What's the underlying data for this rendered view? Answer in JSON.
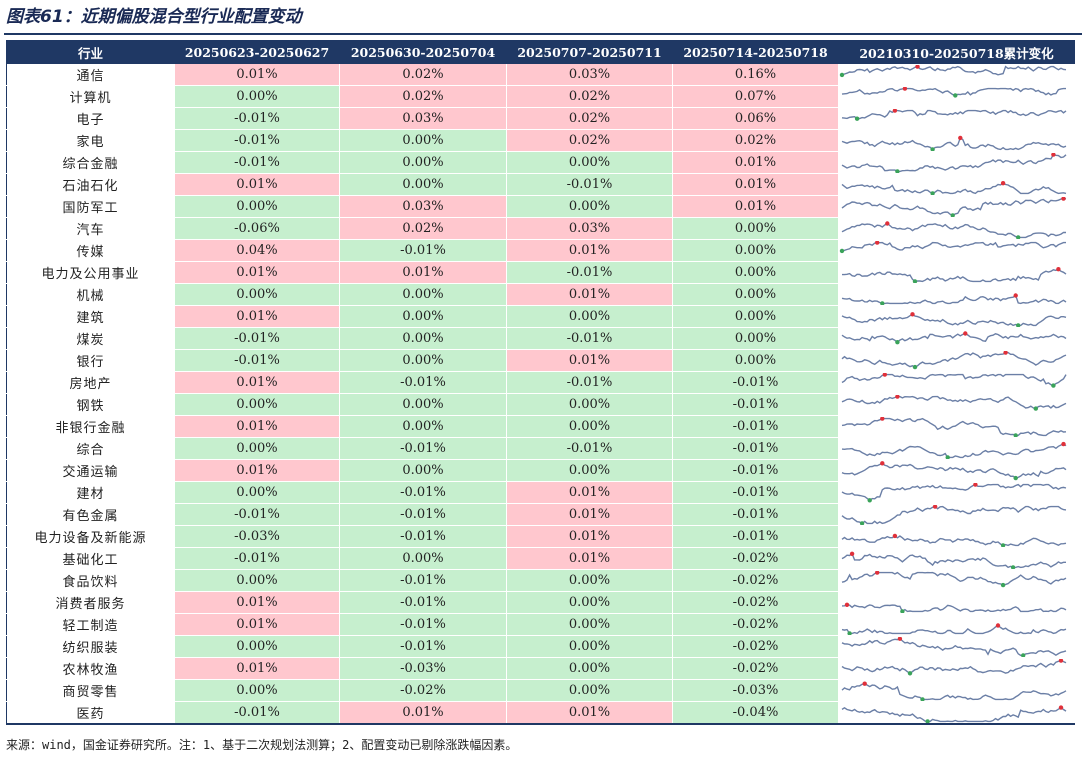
{
  "title": "图表61：近期偏股混合型行业配置变动",
  "headers": [
    "行业",
    "20250623-20250627",
    "20250630-20250704",
    "20250707-20250711",
    "20250714-20250718",
    "20210310-20250718累计变化"
  ],
  "rows": [
    {
      "name": "通信",
      "vals": [
        "0.01%",
        "0.02%",
        "0.03%",
        "0.16%"
      ]
    },
    {
      "name": "计算机",
      "vals": [
        "0.00%",
        "0.02%",
        "0.02%",
        "0.07%"
      ]
    },
    {
      "name": "电子",
      "vals": [
        "-0.01%",
        "0.03%",
        "0.02%",
        "0.06%"
      ]
    },
    {
      "name": "家电",
      "vals": [
        "-0.01%",
        "0.00%",
        "0.02%",
        "0.02%"
      ]
    },
    {
      "name": "综合金融",
      "vals": [
        "-0.01%",
        "0.00%",
        "0.00%",
        "0.01%"
      ]
    },
    {
      "name": "石油石化",
      "vals": [
        "0.01%",
        "0.00%",
        "-0.01%",
        "0.01%"
      ]
    },
    {
      "name": "国防军工",
      "vals": [
        "0.00%",
        "0.03%",
        "0.00%",
        "0.01%"
      ]
    },
    {
      "name": "汽车",
      "vals": [
        "-0.06%",
        "0.02%",
        "0.03%",
        "0.00%"
      ]
    },
    {
      "name": "传媒",
      "vals": [
        "0.04%",
        "-0.01%",
        "0.01%",
        "0.00%"
      ]
    },
    {
      "name": "电力及公用事业",
      "vals": [
        "0.01%",
        "0.01%",
        "-0.01%",
        "0.00%"
      ]
    },
    {
      "name": "机械",
      "vals": [
        "0.00%",
        "0.00%",
        "0.01%",
        "0.00%"
      ]
    },
    {
      "name": "建筑",
      "vals": [
        "0.01%",
        "0.00%",
        "0.00%",
        "0.00%"
      ]
    },
    {
      "name": "煤炭",
      "vals": [
        "-0.01%",
        "0.00%",
        "-0.01%",
        "0.00%"
      ]
    },
    {
      "name": "银行",
      "vals": [
        "-0.01%",
        "0.00%",
        "0.01%",
        "0.00%"
      ]
    },
    {
      "name": "房地产",
      "vals": [
        "0.01%",
        "-0.01%",
        "-0.01%",
        "-0.01%"
      ]
    },
    {
      "name": "钢铁",
      "vals": [
        "0.00%",
        "0.00%",
        "0.00%",
        "-0.01%"
      ]
    },
    {
      "name": "非银行金融",
      "vals": [
        "0.01%",
        "0.00%",
        "0.00%",
        "-0.01%"
      ]
    },
    {
      "name": "综合",
      "vals": [
        "0.00%",
        "-0.01%",
        "-0.01%",
        "-0.01%"
      ]
    },
    {
      "name": "交通运输",
      "vals": [
        "0.01%",
        "0.00%",
        "0.00%",
        "-0.01%"
      ]
    },
    {
      "name": "建材",
      "vals": [
        "0.00%",
        "-0.01%",
        "0.01%",
        "-0.01%"
      ]
    },
    {
      "name": "有色金属",
      "vals": [
        "-0.01%",
        "-0.01%",
        "0.01%",
        "-0.01%"
      ]
    },
    {
      "name": "电力设备及新能源",
      "vals": [
        "-0.03%",
        "-0.01%",
        "0.01%",
        "-0.01%"
      ]
    },
    {
      "name": "基础化工",
      "vals": [
        "-0.01%",
        "0.00%",
        "0.01%",
        "-0.02%"
      ]
    },
    {
      "name": "食品饮料",
      "vals": [
        "0.00%",
        "-0.01%",
        "0.00%",
        "-0.02%"
      ]
    },
    {
      "name": "消费者服务",
      "vals": [
        "0.01%",
        "-0.01%",
        "0.00%",
        "-0.02%"
      ]
    },
    {
      "name": "轻工制造",
      "vals": [
        "0.01%",
        "-0.01%",
        "0.00%",
        "-0.02%"
      ]
    },
    {
      "name": "纺织服装",
      "vals": [
        "0.00%",
        "-0.01%",
        "0.00%",
        "-0.02%"
      ]
    },
    {
      "name": "农林牧渔",
      "vals": [
        "0.01%",
        "-0.03%",
        "0.00%",
        "-0.02%"
      ]
    },
    {
      "name": "商贸零售",
      "vals": [
        "0.00%",
        "-0.02%",
        "0.00%",
        "-0.03%"
      ]
    },
    {
      "name": "医药",
      "vals": [
        "-0.01%",
        "0.01%",
        "0.01%",
        "-0.04%"
      ]
    }
  ],
  "source": "来源：wind，国金证券研究所。注：1、基于二次规划法测算；2、配置变动已剔除涨跌幅因素。",
  "colors": {
    "header_bg": "#1f3864",
    "positive_bg": "#ffc7ce",
    "non_positive_bg": "#c6efce",
    "sparkline": "#6b7fa6",
    "max_marker": "#e0303a",
    "min_marker": "#3aa35a"
  }
}
